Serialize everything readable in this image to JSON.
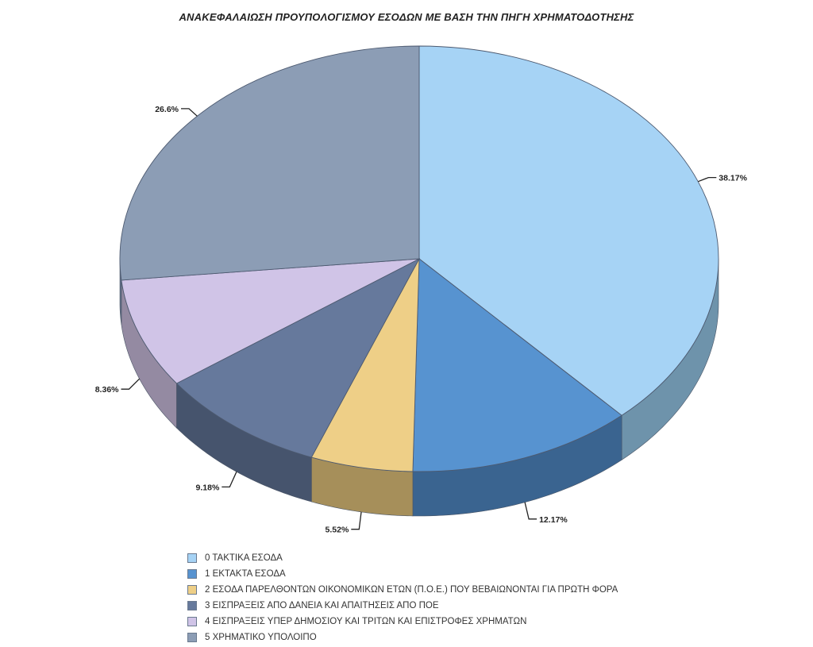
{
  "chart_data": {
    "type": "pie",
    "title": "ΑΝΑΚΕΦΑΛΑΙΩΣΗ ΠΡΟΥΠΟΛΟΓΙΣΜΟΥ ΕΣΟΔΩΝ ΜΕ ΒΑΣΗ ΤΗΝ ΠΗΓΗ ΧΡΗΜΑΤΟΔΟΤΗΣΗΣ",
    "style": "3d",
    "legend_position": "bottom",
    "slices": [
      {
        "label": "0  ΤΑΚΤΙΚΑ ΕΣΟΔΑ",
        "value": 38.17,
        "value_label": "38.17%",
        "color": "#a6d3f5",
        "side_color": "#6e93ab"
      },
      {
        "label": "1  ΕΚΤΑΚΤΑ ΕΣΟΔΑ",
        "value": 12.17,
        "value_label": "12.17%",
        "color": "#5793d0",
        "side_color": "#3a6490"
      },
      {
        "label": "2  ΕΣΟΔΑ ΠΑΡΕΛΘΟΝΤΩΝ ΟΙΚΟΝΟΜΙΚΩΝ ΕΤΩΝ (Π.Ο.Ε.) ΠΟΥ ΒΕΒΑΙΩΝΟΝΤΑΙ ΓΙΑ ΠΡΩΤΗ ΦΟΡΑ",
        "value": 5.52,
        "value_label": "5.52%",
        "color": "#eecf87",
        "side_color": "#a68f5a"
      },
      {
        "label": "3  ΕΙΣΠΡΑΞΕΙΣ ΑΠΟ ΔΑΝΕΙΑ ΚΑΙ ΑΠΑΙΤΗΣΕΙΣ ΑΠΟ ΠΟΕ",
        "value": 9.18,
        "value_label": "9.18%",
        "color": "#66799c",
        "side_color": "#46546d"
      },
      {
        "label": "4  ΕΙΣΠΡΑΞΕΙΣ ΥΠΕΡ ΔΗΜΟΣΙΟΥ ΚΑΙ ΤΡΙΤΩΝ ΚΑΙ ΕΠΙΣΤΡΟΦΕΣ ΧΡΗΜΑΤΩΝ",
        "value": 8.36,
        "value_label": "8.36%",
        "color": "#d0c4e7",
        "side_color": "#948aa2"
      },
      {
        "label": "5  ΧΡΗΜΑΤΙΚΟ ΥΠΟΛΟΙΠΟ",
        "value": 26.6,
        "value_label": "26.6%",
        "color": "#8c9db5",
        "side_color": "#63708a"
      }
    ]
  }
}
